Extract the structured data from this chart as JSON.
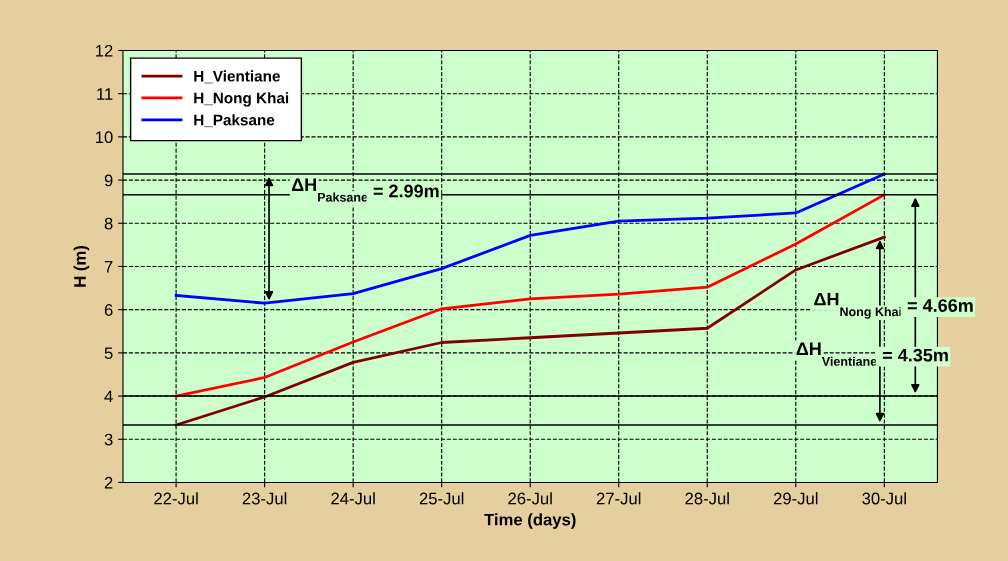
{
  "chart_data": {
    "type": "line",
    "xlabel": "Time (days)",
    "ylabel": "H (m)",
    "categories": [
      "22-Jul",
      "23-Jul",
      "24-Jul",
      "25-Jul",
      "26-Jul",
      "27-Jul",
      "28-Jul",
      "29-Jul",
      "30-Jul"
    ],
    "series": [
      {
        "name": "H_Vientiane",
        "color": "#800000",
        "values": [
          3.33,
          3.98,
          4.78,
          5.24,
          5.35,
          5.46,
          5.57,
          6.92,
          7.68
        ]
      },
      {
        "name": "H_Nong Khai",
        "color": "#ff0000",
        "values": [
          4.0,
          4.43,
          5.25,
          6.02,
          6.25,
          6.36,
          6.52,
          7.52,
          8.66
        ]
      },
      {
        "name": "H_Paksane",
        "color": "#0000ff",
        "values": [
          6.33,
          6.15,
          6.37,
          6.95,
          7.72,
          8.05,
          8.12,
          8.24,
          9.14
        ]
      }
    ],
    "ylim": [
      2,
      12
    ],
    "yticks": [
      2,
      3,
      4,
      5,
      6,
      7,
      8,
      9,
      10,
      11,
      12
    ],
    "grid": true,
    "legend": "top left",
    "marker": "none",
    "line_style": "solid",
    "ref_lines": [
      {
        "axis": "y",
        "value": 9.14,
        "color": "#000000"
      },
      {
        "axis": "y",
        "value": 8.66,
        "color": "#000000"
      },
      {
        "axis": "y",
        "value": 4.0,
        "color": "#000000"
      },
      {
        "axis": "y",
        "value": 3.33,
        "color": "#000000"
      }
    ],
    "annotations": [
      "ΔH$_{Paksane}$ = 2.99m",
      "ΔH$_{Nong Khai}$ = 4.66m",
      "ΔH$_{Vientiane}$ = 4.35m"
    ]
  }
}
